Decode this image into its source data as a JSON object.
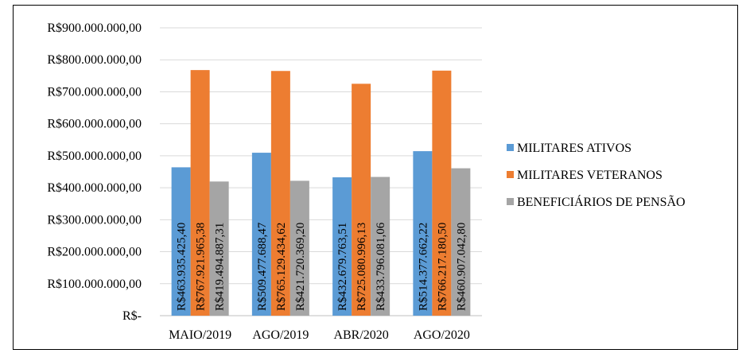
{
  "chart_data": {
    "type": "bar",
    "categories": [
      "MAIO/2019",
      "AGO/2019",
      "ABR/2020",
      "AGO/2020"
    ],
    "series": [
      {
        "name": "MILITARES ATIVOS",
        "color": "#5B9BD5",
        "values": [
          463935425.4,
          509477688.47,
          432679763.51,
          514377662.22
        ],
        "labels": [
          "R$463.935.425,40",
          "R$509.477.688,47",
          "R$432.679.763,51",
          "R$514.377.662,22"
        ]
      },
      {
        "name": "MILITARES VETERANOS",
        "color": "#ED7D31",
        "values": [
          767921965.38,
          765129434.62,
          725080996.13,
          766217180.5
        ],
        "labels": [
          "R$767.921.965,38",
          "R$765.129.434,62",
          "R$725.080.996,13",
          "R$766.217.180,50"
        ]
      },
      {
        "name": "BENEFICIÁRIOS DE PENSÃO",
        "color": "#A5A5A5",
        "values": [
          419494887.31,
          421720369.2,
          433796081.06,
          460907042.8
        ],
        "labels": [
          "R$419.494.887,31",
          "R$421.720.369,20",
          "R$433.796.081,06",
          "R$460.907.042,80"
        ]
      }
    ],
    "ylim": [
      0,
      900000000
    ],
    "yticks": [
      0,
      100000000,
      200000000,
      300000000,
      400000000,
      500000000,
      600000000,
      700000000,
      800000000,
      900000000
    ],
    "ytick_labels": [
      "R$-",
      "R$100.000.000,00",
      "R$200.000.000,00",
      "R$300.000.000,00",
      "R$400.000.000,00",
      "R$500.000.000,00",
      "R$600.000.000,00",
      "R$700.000.000,00",
      "R$800.000.000,00",
      "R$900.000.000,00"
    ],
    "grid": true,
    "legend_position": "right",
    "gridline_color": "#D9D9D9",
    "axis_color": "#BFBFBF"
  }
}
